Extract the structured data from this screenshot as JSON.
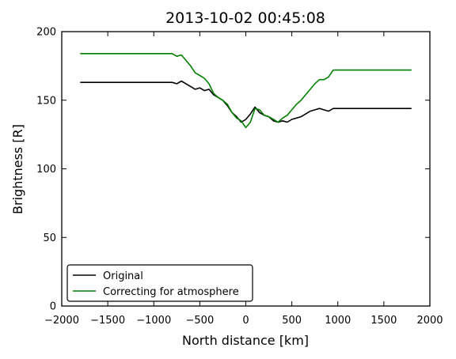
{
  "chart_data": {
    "type": "line",
    "title": "2013-10-02 00:45:08",
    "xlabel": "North distance [km]",
    "ylabel": "Brightness [R]",
    "xlim": [
      -2000,
      2000
    ],
    "ylim": [
      0,
      200
    ],
    "xticks": [
      -2000,
      -1500,
      -1000,
      -500,
      0,
      500,
      1000,
      1500,
      2000
    ],
    "xtick_labels": [
      "−2000",
      "−1500",
      "−1000",
      "−500",
      "0",
      "500",
      "1000",
      "1500",
      "2000"
    ],
    "yticks": [
      0,
      50,
      100,
      150,
      200
    ],
    "ytick_labels": [
      "0",
      "50",
      "100",
      "150",
      "200"
    ],
    "grid": false,
    "legend_position": "lower-left",
    "series": [
      {
        "name": "Original",
        "color": "#000000",
        "x": [
          -1800,
          -1500,
          -1000,
          -800,
          -750,
          -700,
          -650,
          -600,
          -550,
          -500,
          -450,
          -400,
          -350,
          -300,
          -250,
          -200,
          -150,
          -100,
          -50,
          0,
          50,
          100,
          150,
          200,
          250,
          300,
          350,
          400,
          450,
          500,
          550,
          600,
          650,
          700,
          750,
          800,
          850,
          900,
          950,
          1000,
          1100,
          1300,
          1500,
          1800
        ],
        "y": [
          163,
          163,
          163,
          163,
          162,
          164,
          162,
          160,
          158,
          159,
          157,
          158,
          154,
          152,
          150,
          146,
          141,
          138,
          134,
          136,
          140,
          145,
          141,
          139,
          138,
          135,
          134,
          135,
          134,
          136,
          137,
          138,
          140,
          142,
          143,
          144,
          143,
          142,
          144,
          144,
          144,
          144,
          144,
          144
        ]
      },
      {
        "name": "Correcting for atmosphere",
        "color": "#008000",
        "x": [
          -1800,
          -1500,
          -1000,
          -800,
          -750,
          -700,
          -650,
          -600,
          -550,
          -500,
          -450,
          -400,
          -350,
          -300,
          -250,
          -200,
          -150,
          -100,
          -50,
          0,
          50,
          100,
          150,
          200,
          250,
          300,
          350,
          400,
          450,
          500,
          550,
          600,
          650,
          700,
          750,
          800,
          850,
          900,
          950,
          1000,
          1100,
          1300,
          1500,
          1800
        ],
        "y": [
          184,
          184,
          184,
          184,
          182,
          183,
          179,
          175,
          170,
          168,
          166,
          162,
          155,
          152,
          150,
          147,
          141,
          137,
          135,
          130,
          134,
          144,
          143,
          139,
          138,
          136,
          134,
          137,
          139,
          143,
          147,
          150,
          154,
          158,
          162,
          165,
          165,
          167,
          172,
          172,
          172,
          172,
          172,
          172
        ]
      }
    ]
  }
}
